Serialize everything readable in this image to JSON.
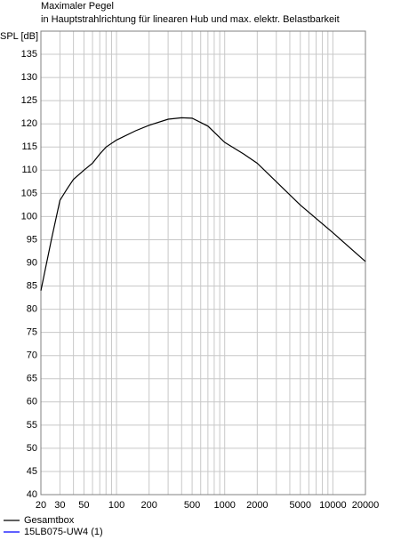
{
  "chart_data": {
    "type": "line",
    "title": "Maximaler Pegel",
    "subtitle": "in Hauptstrahlrichtung für linearen Hub und max. elektr. Belastbarkeit",
    "ylabel": "SPL [dB]",
    "xscale": "log",
    "x": [
      20,
      25,
      30,
      35,
      40,
      50,
      60,
      70,
      80,
      100,
      150,
      200,
      300,
      400,
      500,
      700,
      1000,
      1500,
      2000,
      5000,
      10000,
      20000
    ],
    "series": [
      {
        "name": "Gesamtbox",
        "color": "#000000",
        "values": [
          84,
          95,
          103.5,
          106,
          108,
          110,
          111.5,
          113.5,
          115,
          116.5,
          118.5,
          119.7,
          121,
          121.3,
          121.2,
          119.5,
          116,
          113.5,
          111.5,
          102.5,
          96.5,
          90.3
        ]
      },
      {
        "name": "15LB075-UW4 (1)",
        "color": "#0000ff",
        "values": [
          null,
          null,
          null,
          null,
          null,
          null,
          null,
          null,
          null,
          null,
          null,
          null,
          null,
          null,
          null,
          null,
          null,
          null,
          null,
          null,
          null,
          null
        ]
      }
    ],
    "xlim": [
      20,
      20000
    ],
    "xticks": [
      20,
      30,
      50,
      100,
      200,
      500,
      1000,
      2000,
      5000,
      10000,
      20000
    ],
    "x_minor_ticks": [
      40,
      60,
      70,
      80,
      90,
      300,
      400,
      600,
      700,
      800,
      900,
      3000,
      4000,
      6000,
      7000,
      8000,
      9000
    ],
    "ylim": [
      40,
      140
    ],
    "yticks": [
      40,
      45,
      50,
      55,
      60,
      65,
      70,
      75,
      80,
      85,
      90,
      95,
      100,
      105,
      110,
      115,
      120,
      125,
      130,
      135
    ],
    "grid": true
  }
}
